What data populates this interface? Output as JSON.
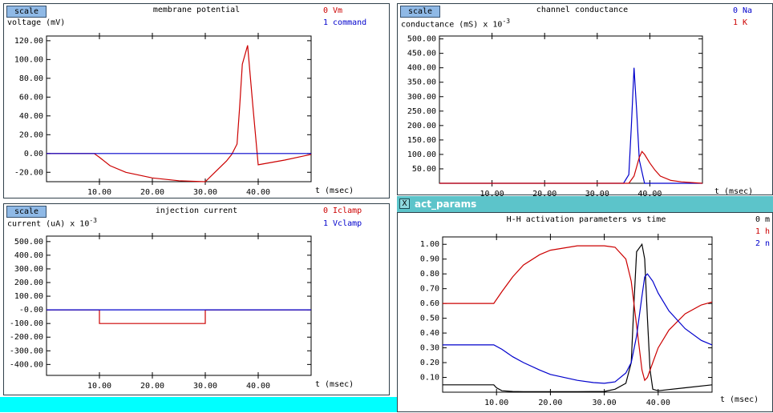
{
  "panels": [
    {
      "id": "membrane",
      "scale_label": "scale",
      "title": "membrane potential",
      "ylabel": "voltage (mV)",
      "ylabel_exp": "",
      "legend": [
        {
          "label": "0 Vm",
          "color": "#cc0000"
        },
        {
          "label": "1 command",
          "color": "#0000cc"
        }
      ],
      "xlabel": "t (msec)"
    },
    {
      "id": "conductance",
      "scale_label": "scale",
      "title": "channel conductance",
      "ylabel": "conductance (mS) x 10",
      "ylabel_exp": "-3",
      "legend": [
        {
          "label": "0 Na",
          "color": "#0000cc"
        },
        {
          "label": "1 K",
          "color": "#cc0000"
        }
      ],
      "xlabel": "t (msec)"
    },
    {
      "id": "injection",
      "scale_label": "scale",
      "title": "injection current",
      "ylabel": "current (uA) x 10",
      "ylabel_exp": "-3",
      "legend": [
        {
          "label": "0 Iclamp",
          "color": "#cc0000"
        },
        {
          "label": "1 Vclamp",
          "color": "#0000cc"
        }
      ],
      "xlabel": "t (msec)"
    },
    {
      "id": "activation",
      "scale_label": "",
      "title": "H-H activation parameters vs time",
      "ylabel": "",
      "ylabel_exp": "",
      "legend": [
        {
          "label": "0 m",
          "color": "#000000"
        },
        {
          "label": "1 h",
          "color": "#cc0000"
        },
        {
          "label": "2 n",
          "color": "#0000cc"
        }
      ],
      "xlabel": "t (msec)"
    }
  ],
  "window": {
    "title": "act_params",
    "icon": "x-window-icon"
  },
  "chart_data": [
    {
      "type": "line",
      "title": "membrane potential",
      "ylabel": "voltage (mV)",
      "xlabel": "t (msec)",
      "xlim": [
        0,
        50
      ],
      "ylim": [
        -30,
        125
      ],
      "xticks": [
        10,
        20,
        30,
        40
      ],
      "xtick_labels": [
        "10.00",
        "20.00",
        "30.00",
        "40.00"
      ],
      "yticks": [
        -20,
        0,
        20,
        40,
        60,
        80,
        100,
        120
      ],
      "ytick_labels": [
        "-20.00",
        "0.00",
        "20.00",
        "40.00",
        "60.00",
        "80.00",
        "100.00",
        "120.00"
      ],
      "series": [
        {
          "name": "Vm",
          "color": "#cc0000",
          "x": [
            0,
            9,
            10,
            12,
            15,
            20,
            25,
            30,
            32,
            34,
            35,
            36,
            36.5,
            37,
            38,
            39,
            40,
            45,
            50
          ],
          "y": [
            0,
            0,
            -4,
            -13,
            -20,
            -26,
            -29,
            -30,
            -19,
            -8,
            -1,
            10,
            50,
            95,
            115,
            50,
            -12,
            -7,
            -1
          ]
        },
        {
          "name": "command",
          "color": "#0000cc",
          "x": [
            0,
            50
          ],
          "y": [
            0,
            0
          ]
        }
      ]
    },
    {
      "type": "line",
      "title": "channel conductance",
      "ylabel": "conductance (mS) x 10^-3",
      "xlabel": "t (msec)",
      "xlim": [
        0,
        50
      ],
      "ylim": [
        0,
        510
      ],
      "xticks": [
        10,
        20,
        30,
        40
      ],
      "xtick_labels": [
        "10.00",
        "20.00",
        "30.00",
        "40.00"
      ],
      "yticks": [
        50,
        100,
        150,
        200,
        250,
        300,
        350,
        400,
        450,
        500
      ],
      "ytick_labels": [
        "50.00",
        "100.00",
        "150.00",
        "200.00",
        "250.00",
        "300.00",
        "350.00",
        "400.00",
        "450.00",
        "500.00"
      ],
      "series": [
        {
          "name": "Na",
          "color": "#0000cc",
          "x": [
            0,
            35,
            36,
            36.5,
            37,
            37.5,
            38,
            39,
            50
          ],
          "y": [
            0,
            0,
            30,
            200,
            400,
            250,
            80,
            0,
            0
          ]
        },
        {
          "name": "K",
          "color": "#cc0000",
          "x": [
            0,
            36,
            37,
            38,
            38.5,
            39,
            40,
            41,
            42,
            44,
            46,
            50
          ],
          "y": [
            0,
            0,
            25,
            90,
            110,
            100,
            70,
            45,
            25,
            10,
            5,
            0
          ]
        }
      ]
    },
    {
      "type": "line",
      "title": "injection current",
      "ylabel": "current (uA) x 10^-3",
      "xlabel": "t (msec)",
      "xlim": [
        0,
        50
      ],
      "ylim": [
        -480,
        540
      ],
      "xticks": [
        10,
        20,
        30,
        40
      ],
      "xtick_labels": [
        "10.00",
        "20.00",
        "30.00",
        "40.00"
      ],
      "yticks": [
        -400,
        -300,
        -200,
        -100,
        0,
        100,
        200,
        300,
        400,
        500
      ],
      "ytick_labels": [
        "-400.00",
        "-300.00",
        "-200.00",
        "-100.00",
        "-0.00",
        "100.00",
        "200.00",
        "300.00",
        "400.00",
        "500.00"
      ],
      "series": [
        {
          "name": "Iclamp",
          "color": "#cc0000",
          "x": [
            0,
            10,
            10,
            30,
            30,
            50
          ],
          "y": [
            0,
            0,
            -100,
            -100,
            0,
            0
          ]
        },
        {
          "name": "Vclamp",
          "color": "#0000cc",
          "x": [
            0,
            50
          ],
          "y": [
            0,
            0
          ]
        }
      ]
    },
    {
      "type": "line",
      "title": "H-H activation parameters vs time",
      "xlabel": "t (msec)",
      "xlim": [
        0,
        50
      ],
      "ylim": [
        0,
        1.05
      ],
      "xticks": [
        10,
        20,
        30,
        40
      ],
      "xtick_labels": [
        "10.00",
        "20.00",
        "30.00",
        "40.00"
      ],
      "yticks": [
        0.1,
        0.2,
        0.3,
        0.4,
        0.5,
        0.6,
        0.7,
        0.8,
        0.9,
        1.0
      ],
      "ytick_labels": [
        "0.10",
        "0.20",
        "0.30",
        "0.40",
        "0.50",
        "0.60",
        "0.70",
        "0.80",
        "0.90",
        "1.00"
      ],
      "series": [
        {
          "name": "m",
          "color": "#000000",
          "x": [
            0,
            9.5,
            10,
            11,
            13,
            15,
            20,
            25,
            30,
            32,
            34,
            35,
            35.5,
            36,
            37,
            37.5,
            38,
            38.5,
            39,
            40,
            45,
            50
          ],
          "y": [
            0.05,
            0.05,
            0.03,
            0.01,
            0.005,
            0.003,
            0.003,
            0.003,
            0.005,
            0.02,
            0.06,
            0.2,
            0.6,
            0.95,
            1.0,
            0.9,
            0.5,
            0.15,
            0.02,
            0.01,
            0.03,
            0.05
          ]
        },
        {
          "name": "h",
          "color": "#cc0000",
          "x": [
            0,
            9.5,
            11,
            13,
            15,
            18,
            20,
            25,
            30,
            32,
            34,
            35,
            36,
            37,
            37.5,
            38,
            39,
            40,
            42,
            45,
            48,
            50
          ],
          "y": [
            0.6,
            0.6,
            0.68,
            0.78,
            0.86,
            0.93,
            0.96,
            0.99,
            0.99,
            0.98,
            0.9,
            0.75,
            0.45,
            0.15,
            0.08,
            0.1,
            0.2,
            0.3,
            0.42,
            0.53,
            0.59,
            0.61
          ]
        },
        {
          "name": "n",
          "color": "#0000cc",
          "x": [
            0,
            9.5,
            11,
            13,
            15,
            18,
            20,
            25,
            28,
            30,
            32,
            34,
            35,
            36,
            37,
            37.5,
            38,
            39,
            40,
            42,
            45,
            48,
            50
          ],
          "y": [
            0.32,
            0.32,
            0.29,
            0.24,
            0.2,
            0.15,
            0.12,
            0.08,
            0.065,
            0.06,
            0.07,
            0.13,
            0.2,
            0.38,
            0.65,
            0.78,
            0.8,
            0.75,
            0.67,
            0.55,
            0.43,
            0.35,
            0.32
          ]
        }
      ]
    }
  ]
}
